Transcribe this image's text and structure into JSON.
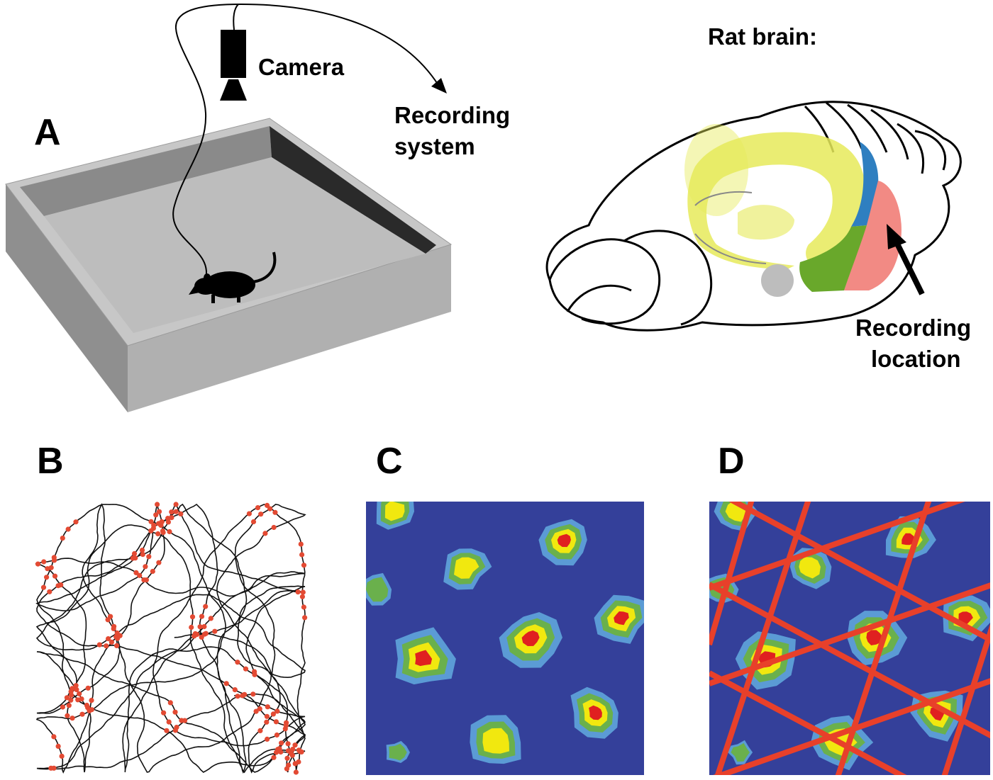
{
  "panels": {
    "a": {
      "letter": "A"
    },
    "b": {
      "letter": "B"
    },
    "c": {
      "letter": "C"
    },
    "d": {
      "letter": "D"
    }
  },
  "labels": {
    "camera": "Camera",
    "recording_system": [
      "Recording",
      "system"
    ],
    "rat_brain": "Rat brain:",
    "recording_location": [
      "Recording",
      "location"
    ]
  },
  "colors": {
    "arena_floor": "#bdbdbd",
    "arena_wall": "#a9a9a9",
    "trajectory": "#111111",
    "spike": "#e34a33",
    "map_background": "#34409a",
    "field_low": "#5b9bd5",
    "field_mid": "#6ab04c",
    "field_high": "#f1e80f",
    "field_peak": "#e02020",
    "grid_line": "#e8402a",
    "hippocampus": "#e6ea5a",
    "region_blue": "#2f7fc0",
    "region_green": "#69a82b",
    "region_pink": "#f28a84"
  }
}
